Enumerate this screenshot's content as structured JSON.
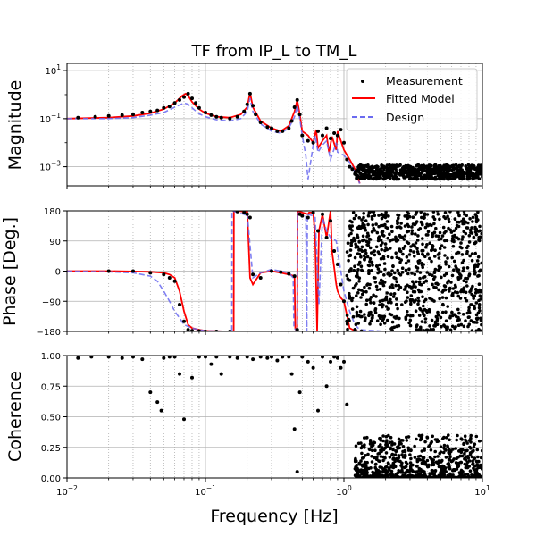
{
  "chart_data": {
    "type": "line",
    "title": "TF from IP_L to TM_L",
    "xlabel": "Frequency [Hz]",
    "xscale": "log",
    "xlim": [
      0.01,
      10
    ],
    "x_tick_labels": [
      "10^-2",
      "10^-1",
      "10^0",
      "10^1"
    ],
    "colors": {
      "measurement": "#000000",
      "fitted": "#ff0000",
      "design": "#6a6af0"
    },
    "legend": {
      "placement": "top-right",
      "entries": [
        "Measurement",
        "Fitted Model",
        "Design"
      ]
    },
    "panels": [
      {
        "id": "magnitude",
        "ylabel": "Magnitude",
        "yscale": "log",
        "ylim": [
          0.00016,
          20
        ],
        "y_tick_labels": [
          "10^1",
          "10^-1",
          "10^-3"
        ],
        "series": [
          {
            "name": "Fitted Model",
            "x": [
              0.01,
              0.02,
              0.03,
              0.04,
              0.05,
              0.06,
              0.068,
              0.072,
              0.075,
              0.08,
              0.09,
              0.1,
              0.12,
              0.15,
              0.18,
              0.2,
              0.21,
              0.22,
              0.25,
              0.3,
              0.35,
              0.4,
              0.44,
              0.46,
              0.48,
              0.5,
              0.55,
              0.6,
              0.63,
              0.65,
              0.7,
              0.75,
              0.78,
              0.82,
              0.88,
              0.9,
              1.0,
              1.1,
              1.2,
              1.3
            ],
            "y": [
              0.1,
              0.11,
              0.13,
              0.17,
              0.25,
              0.45,
              0.9,
              1.1,
              0.9,
              0.5,
              0.25,
              0.17,
              0.12,
              0.11,
              0.15,
              0.3,
              1.2,
              0.3,
              0.08,
              0.04,
              0.03,
              0.05,
              0.2,
              0.6,
              0.15,
              0.03,
              0.02,
              0.01,
              0.035,
              0.006,
              0.012,
              0.02,
              0.004,
              0.018,
              0.005,
              0.03,
              0.005,
              0.002,
              0.0008,
              0.0002
            ]
          },
          {
            "name": "Design",
            "x": [
              0.01,
              0.02,
              0.03,
              0.04,
              0.05,
              0.06,
              0.07,
              0.075,
              0.08,
              0.09,
              0.1,
              0.12,
              0.15,
              0.18,
              0.2,
              0.21,
              0.22,
              0.25,
              0.3,
              0.35,
              0.4,
              0.44,
              0.46,
              0.48,
              0.5,
              0.53,
              0.55,
              0.6,
              0.62,
              0.65,
              0.7,
              0.75,
              0.8,
              0.88,
              0.9,
              1.0,
              1.1,
              1.2,
              1.3
            ],
            "y": [
              0.1,
              0.1,
              0.11,
              0.14,
              0.18,
              0.3,
              0.45,
              0.4,
              0.28,
              0.16,
              0.12,
              0.09,
              0.08,
              0.1,
              0.2,
              0.7,
              0.2,
              0.06,
              0.03,
              0.025,
              0.04,
              0.12,
              0.35,
              0.1,
              0.02,
              0.003,
              0.0003,
              0.008,
              0.02,
              0.004,
              0.008,
              0.012,
              0.002,
              0.01,
              0.004,
              0.003,
              0.0015,
              0.0006,
              0.0002
            ]
          },
          {
            "name": "Measurement",
            "style": "points",
            "x": [
              0.012,
              0.016,
              0.02,
              0.025,
              0.03,
              0.035,
              0.04,
              0.045,
              0.05,
              0.055,
              0.06,
              0.065,
              0.07,
              0.075,
              0.08,
              0.085,
              0.09,
              0.1,
              0.11,
              0.12,
              0.13,
              0.15,
              0.17,
              0.19,
              0.2,
              0.21,
              0.22,
              0.23,
              0.25,
              0.28,
              0.3,
              0.33,
              0.36,
              0.4,
              0.42,
              0.44,
              0.46,
              0.48,
              0.5,
              0.55,
              0.6,
              0.65,
              0.7,
              0.75,
              0.8,
              0.85,
              0.9,
              0.95,
              1.0,
              1.05,
              1.1,
              1.15,
              1.2
            ],
            "y": [
              0.11,
              0.12,
              0.13,
              0.14,
              0.15,
              0.18,
              0.2,
              0.22,
              0.28,
              0.32,
              0.45,
              0.6,
              0.8,
              1.1,
              0.7,
              0.45,
              0.28,
              0.18,
              0.14,
              0.12,
              0.11,
              0.1,
              0.12,
              0.2,
              0.4,
              1.1,
              0.35,
              0.15,
              0.07,
              0.045,
              0.04,
              0.03,
              0.03,
              0.04,
              0.08,
              0.3,
              0.6,
              0.15,
              0.02,
              0.012,
              0.01,
              0.03,
              0.02,
              0.04,
              0.015,
              0.025,
              0.02,
              0.035,
              0.01,
              0.002,
              0.001,
              0.0008,
              0.0005
            ]
          }
        ],
        "noise_floor": {
          "name": "Measurement",
          "x_range": [
            1.2,
            10
          ],
          "y_range": [
            0.0003,
            0.0012
          ]
        }
      },
      {
        "id": "phase",
        "ylabel": "Phase [Deg.]",
        "yscale": "linear",
        "ylim": [
          -180,
          180
        ],
        "y_tick_labels": [
          "180",
          "90",
          "0",
          "−90",
          "−180"
        ],
        "series": [
          {
            "name": "Fitted Model",
            "x": [
              0.01,
              0.02,
              0.03,
              0.04,
              0.05,
              0.055,
              0.06,
              0.065,
              0.07,
              0.075,
              0.08,
              0.09,
              0.1,
              0.12,
              0.14,
              0.16,
              0.1605,
              0.17,
              0.19,
              0.2,
              0.2005,
              0.21,
              0.22,
              0.25,
              0.3,
              0.35,
              0.4,
              0.44,
              0.445,
              0.45,
              0.46,
              0.462,
              0.5,
              0.55,
              0.56,
              0.6,
              0.62,
              0.64,
              0.66,
              0.7,
              0.75,
              0.8,
              0.82,
              0.85,
              0.88,
              0.9,
              0.95,
              1.0,
              1.1,
              1.2,
              1.3,
              2,
              5,
              10
            ],
            "y": [
              0,
              0,
              -1,
              -2,
              -5,
              -10,
              -20,
              -60,
              -120,
              -160,
              -170,
              -175,
              -178,
              -179,
              -180,
              -180,
              180,
              180,
              178,
              175,
              180,
              -20,
              -40,
              -5,
              0,
              -5,
              -10,
              -15,
              -170,
              -175,
              -175,
              180,
              175,
              170,
              175,
              175,
              100,
              -180,
              120,
              170,
              100,
              180,
              60,
              10,
              -40,
              -60,
              -80,
              -90,
              -170,
              -178,
              -180,
              -180,
              -180,
              -180
            ]
          },
          {
            "name": "Design",
            "x": [
              0.01,
              0.02,
              0.03,
              0.04,
              0.045,
              0.05,
              0.055,
              0.06,
              0.065,
              0.07,
              0.08,
              0.09,
              0.1,
              0.12,
              0.14,
              0.155,
              0.1555,
              0.17,
              0.19,
              0.2,
              0.2005,
              0.22,
              0.25,
              0.3,
              0.35,
              0.4,
              0.43,
              0.435,
              0.45,
              0.46,
              0.462,
              0.5,
              0.53,
              0.54,
              0.545,
              0.6,
              0.62,
              0.66,
              0.7,
              0.75,
              0.8,
              0.88,
              0.9,
              0.95,
              1.0,
              1.1,
              1.2,
              1.3,
              2,
              5,
              10
            ],
            "y": [
              0,
              -2,
              -5,
              -15,
              -30,
              -60,
              -90,
              -120,
              -140,
              -160,
              -170,
              -175,
              -178,
              -179,
              -180,
              -180,
              180,
              175,
              170,
              165,
              170,
              -20,
              -5,
              5,
              0,
              -5,
              -20,
              -170,
              -175,
              -175,
              175,
              170,
              165,
              -180,
              170,
              165,
              160,
              -100,
              160,
              120,
              100,
              90,
              60,
              0,
              -60,
              -120,
              -160,
              -175,
              -180,
              -180,
              -180
            ]
          },
          {
            "name": "Measurement",
            "style": "points",
            "x": [
              0.02,
              0.03,
              0.04,
              0.05,
              0.055,
              0.06,
              0.065,
              0.07,
              0.075,
              0.08,
              0.09,
              0.1,
              0.12,
              0.15,
              0.17,
              0.19,
              0.2,
              0.21,
              0.22,
              0.25,
              0.3,
              0.35,
              0.4,
              0.44,
              0.46,
              0.48,
              0.5,
              0.55,
              0.6,
              0.65,
              0.7,
              0.75,
              0.8,
              0.85,
              0.9,
              0.95,
              1.0,
              1.05
            ],
            "y": [
              0,
              0,
              -5,
              -10,
              -20,
              -30,
              -100,
              -150,
              -175,
              -178,
              -179,
              -180,
              -180,
              -180,
              178,
              175,
              170,
              160,
              -10,
              -20,
              0,
              -3,
              -8,
              -15,
              -175,
              170,
              165,
              160,
              175,
              120,
              170,
              100,
              150,
              60,
              20,
              -40,
              -90,
              -150
            ]
          }
        ],
        "noise_floor": {
          "name": "Measurement",
          "x_range": [
            1.05,
            10
          ],
          "y_range": [
            -180,
            180
          ]
        }
      },
      {
        "id": "coherence",
        "ylabel": "Coherence",
        "yscale": "linear",
        "ylim": [
          0,
          1
        ],
        "y_tick_labels": [
          "1.00",
          "0.75",
          "0.50",
          "0.25",
          "0.00"
        ],
        "series": [
          {
            "name": "Measurement",
            "style": "points",
            "x": [
              0.012,
              0.015,
              0.02,
              0.025,
              0.03,
              0.035,
              0.04,
              0.045,
              0.048,
              0.05,
              0.055,
              0.06,
              0.065,
              0.07,
              0.08,
              0.09,
              0.1,
              0.11,
              0.12,
              0.13,
              0.15,
              0.17,
              0.2,
              0.22,
              0.25,
              0.28,
              0.3,
              0.33,
              0.36,
              0.4,
              0.42,
              0.44,
              0.46,
              0.48,
              0.5,
              0.55,
              0.6,
              0.65,
              0.7,
              0.75,
              0.8,
              0.85,
              0.9,
              0.95,
              1.0,
              1.05
            ],
            "y": [
              0.98,
              0.99,
              0.99,
              0.98,
              0.99,
              0.97,
              0.7,
              0.62,
              0.55,
              0.98,
              0.99,
              0.99,
              0.85,
              0.48,
              0.82,
              0.99,
              0.99,
              0.93,
              0.99,
              0.85,
              0.99,
              0.98,
              0.99,
              0.97,
              0.99,
              0.98,
              0.99,
              0.96,
              0.99,
              0.99,
              0.85,
              0.4,
              0.05,
              0.7,
              0.99,
              0.95,
              0.9,
              0.55,
              0.99,
              0.75,
              0.95,
              0.99,
              0.98,
              0.9,
              0.95,
              0.6
            ]
          }
        ],
        "noise_floor": {
          "name": "Measurement",
          "x_range": [
            1.2,
            10
          ],
          "y_range": [
            0.0,
            0.35
          ]
        }
      }
    ]
  }
}
